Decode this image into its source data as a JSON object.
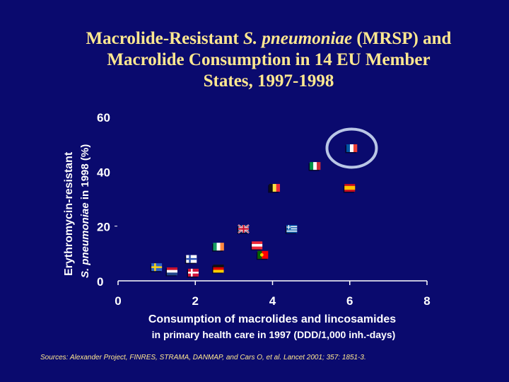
{
  "title": {
    "line1_pre": "Macrolide-Resistant ",
    "line1_italic": "S. pneumoniae",
    "line1_post": " (MRSP) and",
    "line2": "Macrolide Consumption in 14 EU Member",
    "line3": "States, 1997-1998"
  },
  "chart_data": {
    "type": "scatter",
    "xlabel_line1": "Consumption of macrolides and lincosamides",
    "xlabel_line2": "in primary health care in 1997 (DDD/1,000 inh.-days)",
    "ylabel_line1": "Erythromycin-resistant",
    "ylabel_line2_italic": "S. pneumoniae",
    "ylabel_line2_rest": " in 1998 (%)",
    "xlim": [
      0,
      8
    ],
    "ylim": [
      0,
      60
    ],
    "x_ticks": [
      "0",
      "2",
      "4",
      "6",
      "8"
    ],
    "y_ticks": [
      "0",
      "20",
      "40",
      "60"
    ],
    "points": [
      {
        "country": "Sweden",
        "flag": "sweden",
        "x": 1.0,
        "y": 5
      },
      {
        "country": "Netherlands",
        "flag": "netherlands",
        "x": 1.4,
        "y": 3.5
      },
      {
        "country": "Finland",
        "flag": "finland",
        "x": 1.9,
        "y": 8
      },
      {
        "country": "Denmark",
        "flag": "denmark",
        "x": 1.95,
        "y": 3
      },
      {
        "country": "Germany",
        "flag": "germany",
        "x": 2.6,
        "y": 4.5
      },
      {
        "country": "Ireland",
        "flag": "ireland",
        "x": 2.6,
        "y": 12.5
      },
      {
        "country": "United Kingdom",
        "flag": "uk",
        "x": 3.25,
        "y": 19
      },
      {
        "country": "Austria",
        "flag": "austria",
        "x": 3.6,
        "y": 13
      },
      {
        "country": "Portugal",
        "flag": "portugal",
        "x": 3.75,
        "y": 9.5
      },
      {
        "country": "Belgium",
        "flag": "belgium",
        "x": 4.05,
        "y": 34
      },
      {
        "country": "Greece",
        "flag": "greece",
        "x": 4.5,
        "y": 19
      },
      {
        "country": "Italy",
        "flag": "italy",
        "x": 5.1,
        "y": 42
      },
      {
        "country": "Spain",
        "flag": "spain",
        "x": 6.0,
        "y": 34
      },
      {
        "country": "France",
        "flag": "france",
        "x": 6.05,
        "y": 48.5
      }
    ],
    "highlight": "France"
  },
  "source": "Sources: Alexander Project, FINRES, STRAMA, DANMAP, and Cars O, et al. Lancet 2001; 357: 1851-3.",
  "colors": {
    "background": "#0a0a6e",
    "title": "#ffe890",
    "axis_text": "#ffffff",
    "highlight_ring": "#b9c6e6"
  }
}
